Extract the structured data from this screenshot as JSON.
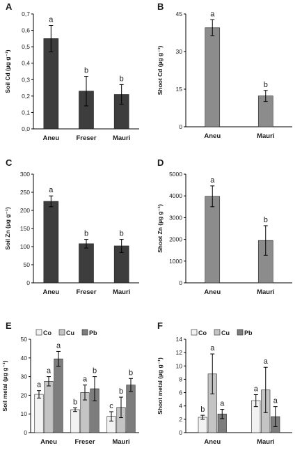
{
  "chart_data": [
    {
      "panel": "A",
      "type": "bar",
      "ylabel": "Soil Cd (µg g⁻¹)",
      "categories": [
        "Aneu",
        "Freser",
        "Mauri"
      ],
      "ylim": [
        0,
        0.7
      ],
      "yticks": [
        "0,0",
        "0,1",
        "0,2",
        "0,3",
        "0,4",
        "0,5",
        "0,6",
        "0,7"
      ],
      "series": [
        {
          "values": [
            0.55,
            0.23,
            0.21
          ],
          "errors": [
            0.08,
            0.09,
            0.06
          ],
          "letters": [
            "a",
            "b",
            "b"
          ],
          "color": "#3d3d3d"
        }
      ]
    },
    {
      "panel": "B",
      "type": "bar",
      "ylabel": "Shoot Cd (µg g⁻¹)",
      "categories": [
        "Aneu",
        "Mauri"
      ],
      "ylim": [
        0,
        45
      ],
      "yticks": [
        "0",
        "15",
        "30",
        "45"
      ],
      "series": [
        {
          "values": [
            39.5,
            12.3
          ],
          "errors": [
            3.2,
            2.2
          ],
          "letters": [
            "a",
            "b"
          ],
          "color": "#8c8c8c"
        }
      ]
    },
    {
      "panel": "C",
      "type": "bar",
      "ylabel": "Soil Zn (µg g⁻¹)",
      "categories": [
        "Aneu",
        "Freser",
        "Mauri"
      ],
      "ylim": [
        0,
        300
      ],
      "yticks": [
        "0",
        "50",
        "100",
        "150",
        "200",
        "250",
        "300"
      ],
      "series": [
        {
          "values": [
            225,
            108,
            102
          ],
          "errors": [
            15,
            12,
            18
          ],
          "letters": [
            "a",
            "b",
            "b"
          ],
          "color": "#3d3d3d"
        }
      ]
    },
    {
      "panel": "D",
      "type": "bar",
      "ylabel": "Shoot Zn (µg g⁻¹)",
      "categories": [
        "Aneu",
        "Mauri"
      ],
      "ylim": [
        0,
        5000
      ],
      "yticks": [
        "0",
        "1000",
        "2000",
        "3000",
        "4000",
        "5000"
      ],
      "series": [
        {
          "values": [
            3980,
            1950
          ],
          "errors": [
            480,
            680
          ],
          "letters": [
            "a",
            "b"
          ],
          "color": "#8c8c8c"
        }
      ]
    },
    {
      "panel": "E",
      "type": "bar",
      "ylabel": "Soil metal (µg g⁻¹)",
      "categories": [
        "Aneu",
        "Freser",
        "Mauri"
      ],
      "ylim": [
        0,
        50
      ],
      "yticks": [
        "0",
        "10",
        "20",
        "30",
        "40",
        "50"
      ],
      "legend": "top-left",
      "series": [
        {
          "name": "Co",
          "values": [
            20.5,
            12.3,
            8.7
          ],
          "errors": [
            2.0,
            1.0,
            2.5
          ],
          "letters": [
            "a",
            "b",
            "c"
          ],
          "color": "#f2f2f2"
        },
        {
          "name": "Cu",
          "values": [
            27.5,
            21.5,
            13.5
          ],
          "errors": [
            2.5,
            4.0,
            5.5
          ],
          "letters": [
            "a",
            "a",
            "b"
          ],
          "color": "#c4c4c4"
        },
        {
          "name": "Pb",
          "values": [
            39.5,
            23.5,
            25.5
          ],
          "errors": [
            4.0,
            6.5,
            3.5
          ],
          "letters": [
            "a",
            "b",
            "b"
          ],
          "color": "#7d7d7d"
        }
      ]
    },
    {
      "panel": "F",
      "type": "bar",
      "ylabel": "Shoot metal (µg g⁻¹)",
      "categories": [
        "Aneu",
        "Mauri"
      ],
      "ylim": [
        0,
        14
      ],
      "yticks": [
        "0",
        "2",
        "4",
        "6",
        "8",
        "10",
        "12",
        "14"
      ],
      "legend": "top-left",
      "series": [
        {
          "name": "Co",
          "values": [
            2.3,
            4.8
          ],
          "errors": [
            0.3,
            0.9
          ],
          "letters": [
            "b",
            "a"
          ],
          "color": "#f2f2f2"
        },
        {
          "name": "Cu",
          "values": [
            8.8,
            6.4
          ],
          "errors": [
            3.0,
            3.4
          ],
          "letters": [
            "a",
            "a"
          ],
          "color": "#c4c4c4"
        },
        {
          "name": "Pb",
          "values": [
            2.8,
            2.4
          ],
          "errors": [
            0.7,
            1.5
          ],
          "letters": [
            "a",
            "a"
          ],
          "color": "#7d7d7d"
        }
      ]
    }
  ]
}
